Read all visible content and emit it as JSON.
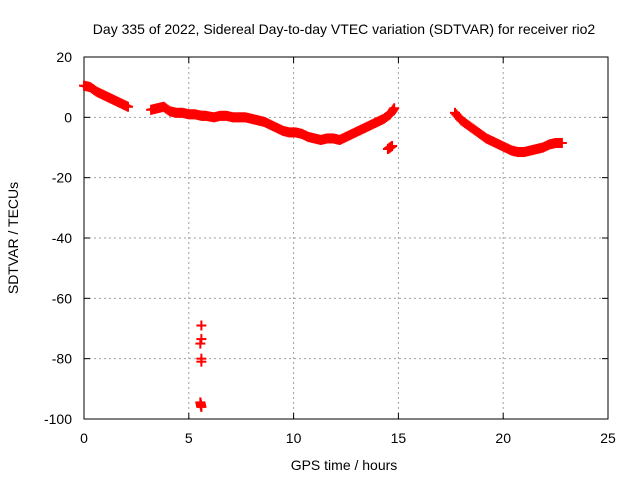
{
  "chart_data": {
    "type": "scatter",
    "title": "Day 335 of 2022, Sidereal Day-to-day VTEC variation (SDTVAR) for receiver rio2",
    "xlabel": "GPS time / hours",
    "ylabel": "SDTVAR / TECUs",
    "xlim": [
      0,
      25
    ],
    "ylim": [
      -100,
      20
    ],
    "xticks": [
      0,
      5,
      10,
      15,
      20,
      25
    ],
    "yticks": [
      -100,
      -80,
      -60,
      -40,
      -20,
      0,
      20
    ],
    "xtick_labels": [
      "0",
      "5",
      "10",
      "15",
      "20",
      "25"
    ],
    "ytick_labels": [
      "-100",
      "-80",
      "-60",
      "-40",
      "-20",
      "0",
      "20"
    ],
    "grid": true,
    "marker": "+",
    "color": "#ff0000",
    "series": [
      {
        "name": "SDTVAR",
        "x": [
          0.0,
          0.3,
          0.6,
          0.9,
          1.2,
          1.5,
          1.8,
          2.1,
          3.2,
          3.5,
          3.8,
          4.1,
          4.4,
          4.7,
          5.0,
          5.3,
          5.6,
          5.8,
          6.2,
          6.5,
          6.8,
          7.1,
          7.4,
          7.7,
          8.0,
          8.3,
          8.6,
          8.9,
          9.2,
          9.5,
          9.8,
          10.1,
          10.4,
          10.7,
          11.0,
          11.3,
          11.6,
          11.9,
          12.2,
          12.5,
          12.8,
          13.1,
          13.4,
          13.7,
          14.0,
          14.3,
          14.6,
          14.8,
          14.5,
          14.7,
          17.7,
          18.0,
          18.3,
          18.6,
          18.9,
          19.2,
          19.5,
          19.8,
          20.1,
          20.4,
          20.7,
          21.0,
          21.3,
          21.6,
          21.9,
          22.2,
          22.5,
          22.8,
          5.6,
          5.6,
          5.55,
          5.6,
          5.6,
          5.55,
          5.6
        ],
        "y": [
          10.5,
          10.0,
          8.5,
          7.5,
          6.5,
          5.5,
          4.5,
          3.5,
          2.5,
          3.0,
          3.5,
          2.0,
          1.5,
          1.5,
          1.0,
          1.0,
          0.5,
          0.5,
          0.0,
          0.5,
          0.5,
          0.0,
          0.0,
          0.0,
          -0.5,
          -1.0,
          -1.5,
          -2.5,
          -3.5,
          -4.5,
          -5.0,
          -5.0,
          -5.5,
          -6.5,
          -7.0,
          -7.5,
          -7.0,
          -7.0,
          -7.5,
          -6.5,
          -5.5,
          -4.5,
          -3.5,
          -2.5,
          -1.5,
          -0.5,
          1.0,
          3.0,
          -10.5,
          -9.5,
          1.5,
          -1.0,
          -2.5,
          -4.0,
          -5.5,
          -7.0,
          -8.0,
          -9.0,
          -10.0,
          -11.0,
          -11.5,
          -11.5,
          -11.0,
          -10.5,
          -10.0,
          -9.0,
          -8.5,
          -8.5,
          -69.0,
          -73.5,
          -75.0,
          -80.0,
          -81.0,
          -94.5,
          -96.0
        ]
      }
    ]
  }
}
